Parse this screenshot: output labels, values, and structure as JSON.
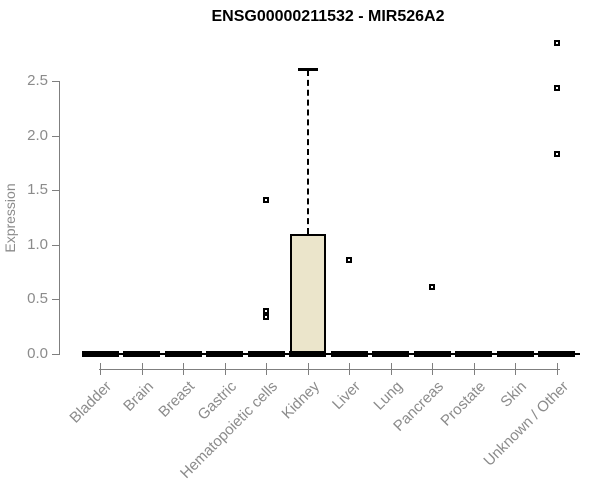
{
  "title": "ENSG00000211532 - MIR526A2",
  "colors": {
    "box_fill": "#EBE5CB",
    "box_border": "#000000",
    "axis_gray": "#7f7f7f",
    "label_gray": "#8b8b8b",
    "title_black": "#000000"
  },
  "chart_data": {
    "type": "boxplot",
    "title": "ENSG00000211532 - MIR526A2",
    "xlabel": "",
    "ylabel": "Expression",
    "ylim": [
      0,
      2.9
    ],
    "y_ticks": [
      0.0,
      0.5,
      1.0,
      1.5,
      2.0,
      2.5
    ],
    "y_tick_labels": [
      "0.0",
      "0.5",
      "1.0",
      "1.5",
      "2.0",
      "2.5"
    ],
    "grid": false,
    "legend": "none",
    "categories": [
      "Bladder",
      "Brain",
      "Breast",
      "Gastric",
      "Hematopoietic cells",
      "Kidney",
      "Liver",
      "Lung",
      "Pancreas",
      "Prostate",
      "Skin",
      "Unknown / Other"
    ],
    "series": [
      {
        "name": "Bladder",
        "q1": 0,
        "median": 0,
        "q3": 0,
        "whisker_low": 0,
        "whisker_high": 0,
        "outliers": []
      },
      {
        "name": "Brain",
        "q1": 0,
        "median": 0,
        "q3": 0,
        "whisker_low": 0,
        "whisker_high": 0,
        "outliers": []
      },
      {
        "name": "Breast",
        "q1": 0,
        "median": 0,
        "q3": 0,
        "whisker_low": 0,
        "whisker_high": 0,
        "outliers": []
      },
      {
        "name": "Gastric",
        "q1": 0,
        "median": 0,
        "q3": 0,
        "whisker_low": 0,
        "whisker_high": 0,
        "outliers": []
      },
      {
        "name": "Hematopoietic cells",
        "q1": 0,
        "median": 0,
        "q3": 0,
        "whisker_low": 0,
        "whisker_high": 0,
        "outliers": [
          1.41,
          0.39,
          0.34
        ]
      },
      {
        "name": "Kidney",
        "q1": 0,
        "median": 0,
        "q3": 1.1,
        "whisker_low": 0,
        "whisker_high": 2.6,
        "outliers": []
      },
      {
        "name": "Liver",
        "q1": 0,
        "median": 0,
        "q3": 0,
        "whisker_low": 0,
        "whisker_high": 0,
        "outliers": [
          0.86
        ]
      },
      {
        "name": "Lung",
        "q1": 0,
        "median": 0,
        "q3": 0,
        "whisker_low": 0,
        "whisker_high": 0,
        "outliers": []
      },
      {
        "name": "Pancreas",
        "q1": 0,
        "median": 0,
        "q3": 0,
        "whisker_low": 0,
        "whisker_high": 0,
        "outliers": [
          0.61
        ]
      },
      {
        "name": "Prostate",
        "q1": 0,
        "median": 0,
        "q3": 0,
        "whisker_low": 0,
        "whisker_high": 0,
        "outliers": []
      },
      {
        "name": "Skin",
        "q1": 0,
        "median": 0,
        "q3": 0,
        "whisker_low": 0,
        "whisker_high": 0,
        "outliers": []
      },
      {
        "name": "Unknown / Other",
        "q1": 0,
        "median": 0,
        "q3": 0,
        "whisker_low": 0,
        "whisker_high": 0,
        "outliers": [
          2.85,
          2.44,
          1.83
        ]
      }
    ]
  }
}
